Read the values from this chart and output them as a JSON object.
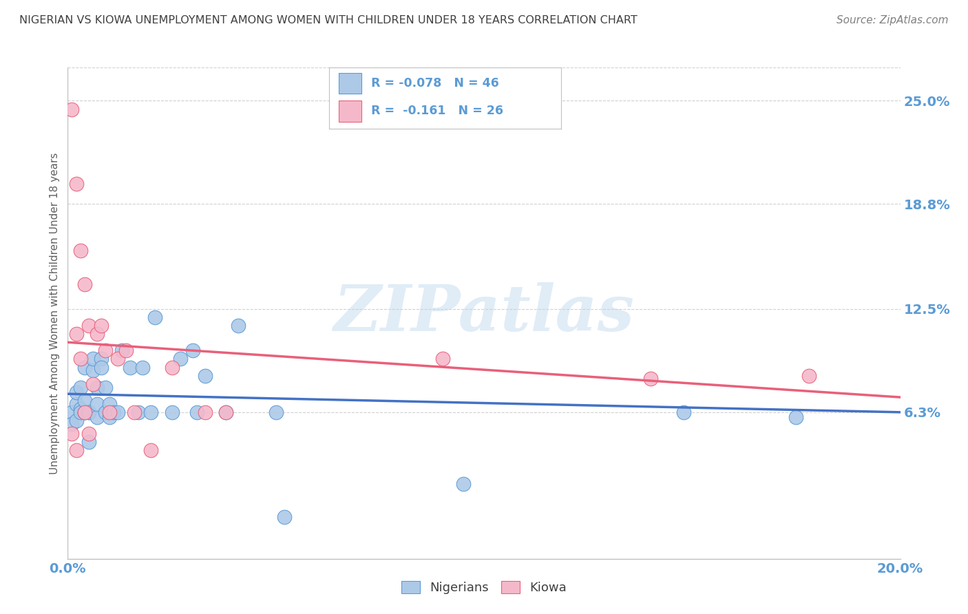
{
  "title": "NIGERIAN VS KIOWA UNEMPLOYMENT AMONG WOMEN WITH CHILDREN UNDER 18 YEARS CORRELATION CHART",
  "source": "Source: ZipAtlas.com",
  "ylabel": "Unemployment Among Women with Children Under 18 years",
  "xlim": [
    0.0,
    0.2
  ],
  "ylim": [
    -0.025,
    0.27
  ],
  "xtick_vals": [
    0.0,
    0.05,
    0.1,
    0.15,
    0.2
  ],
  "xtick_labels": [
    "0.0%",
    "",
    "",
    "",
    "20.0%"
  ],
  "ytick_vals_right": [
    0.063,
    0.125,
    0.188,
    0.25
  ],
  "ytick_labels_right": [
    "6.3%",
    "12.5%",
    "18.8%",
    "25.0%"
  ],
  "nigerian_color": "#adc9e8",
  "kiowa_color": "#f5b8cb",
  "nigerian_edge_color": "#5b9bd5",
  "kiowa_edge_color": "#e8607a",
  "nigerian_line_color": "#4472c4",
  "kiowa_line_color": "#e8607a",
  "title_color": "#404040",
  "source_color": "#808080",
  "axis_color": "#5b9bd5",
  "ylabel_color": "#606060",
  "grid_color": "#d0d0d0",
  "watermark": "ZIPatlas",
  "watermark_color": "#cce0f0",
  "legend_text_color": "#5b9bd5",
  "nigerian_x": [
    0.001,
    0.001,
    0.002,
    0.002,
    0.002,
    0.003,
    0.003,
    0.003,
    0.004,
    0.004,
    0.004,
    0.004,
    0.005,
    0.005,
    0.005,
    0.006,
    0.006,
    0.007,
    0.007,
    0.007,
    0.008,
    0.008,
    0.009,
    0.009,
    0.01,
    0.01,
    0.011,
    0.012,
    0.013,
    0.015,
    0.017,
    0.018,
    0.02,
    0.021,
    0.025,
    0.027,
    0.03,
    0.031,
    0.033,
    0.038,
    0.041,
    0.05,
    0.052,
    0.095,
    0.148,
    0.175
  ],
  "nigerian_y": [
    0.063,
    0.056,
    0.068,
    0.075,
    0.058,
    0.065,
    0.078,
    0.063,
    0.063,
    0.063,
    0.07,
    0.09,
    0.063,
    0.063,
    0.045,
    0.088,
    0.095,
    0.06,
    0.078,
    0.068,
    0.095,
    0.09,
    0.078,
    0.063,
    0.068,
    0.06,
    0.063,
    0.063,
    0.1,
    0.09,
    0.063,
    0.09,
    0.063,
    0.12,
    0.063,
    0.095,
    0.1,
    0.063,
    0.085,
    0.063,
    0.115,
    0.063,
    0.0,
    0.02,
    0.063,
    0.06
  ],
  "kiowa_x": [
    0.001,
    0.001,
    0.002,
    0.002,
    0.002,
    0.003,
    0.003,
    0.004,
    0.004,
    0.005,
    0.005,
    0.006,
    0.007,
    0.008,
    0.009,
    0.01,
    0.012,
    0.014,
    0.016,
    0.02,
    0.025,
    0.033,
    0.038,
    0.09,
    0.14,
    0.178
  ],
  "kiowa_y": [
    0.245,
    0.05,
    0.2,
    0.11,
    0.04,
    0.16,
    0.095,
    0.14,
    0.063,
    0.115,
    0.05,
    0.08,
    0.11,
    0.115,
    0.1,
    0.063,
    0.095,
    0.1,
    0.063,
    0.04,
    0.09,
    0.063,
    0.063,
    0.095,
    0.083,
    0.085
  ],
  "nigerian_trend_x0": 0.0,
  "nigerian_trend_x1": 0.2,
  "nigerian_trend_y0": 0.074,
  "nigerian_trend_y1": 0.063,
  "kiowa_trend_x0": 0.0,
  "kiowa_trend_x1": 0.2,
  "kiowa_trend_y0": 0.105,
  "kiowa_trend_y1": 0.072
}
